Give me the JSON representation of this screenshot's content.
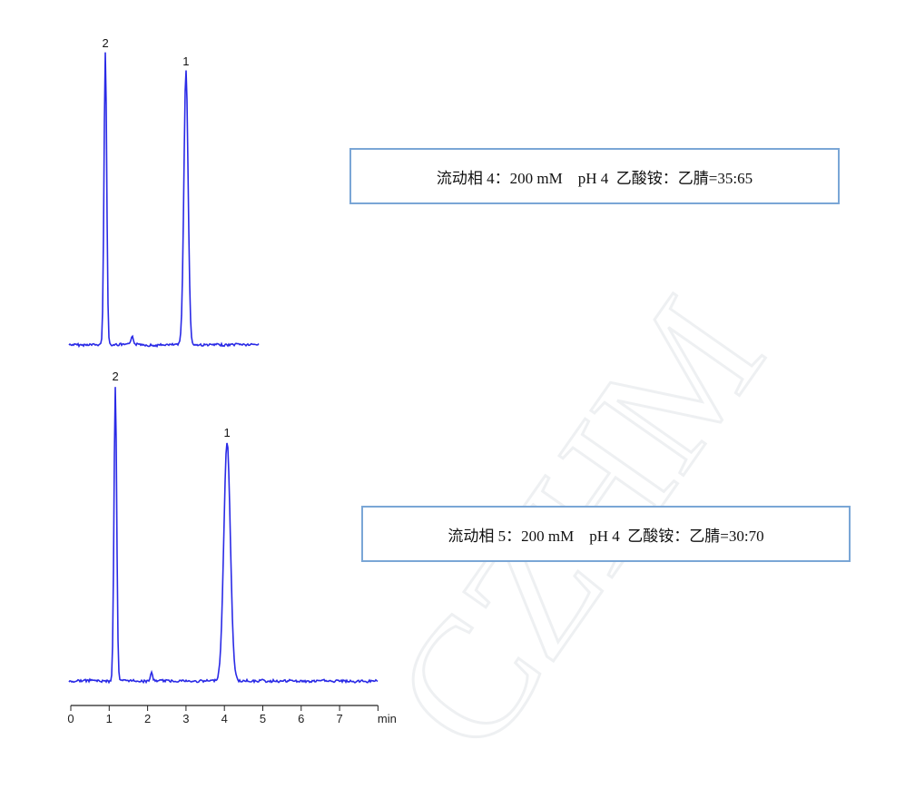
{
  "watermark": "CZHM",
  "line_color": "#2a2ae6",
  "box_border_color": "#7aa6d6",
  "chart_data": [
    {
      "type": "line",
      "title": "",
      "xlabel": "",
      "ylabel": "",
      "xlim": [
        0,
        4.9
      ],
      "grid": false,
      "peaks": [
        {
          "label": "2",
          "rt": 0.9,
          "height": 322,
          "sigma": 0.035
        },
        {
          "label": "1",
          "rt": 3.0,
          "height": 302,
          "sigma": 0.055
        },
        {
          "label": "",
          "rt": 1.6,
          "height": 10,
          "sigma": 0.03
        }
      ],
      "condition": "流动相 4：200 mM    pH 4  乙酸铵：乙腈=35:65"
    },
    {
      "type": "line",
      "title": "",
      "xlabel": "min",
      "ylabel": "",
      "xlim": [
        0,
        8
      ],
      "grid": false,
      "x_ticks": [
        "0",
        "1",
        "2",
        "3",
        "4",
        "5",
        "6",
        "7"
      ],
      "peaks": [
        {
          "label": "2",
          "rt": 1.16,
          "height": 325,
          "sigma": 0.035
        },
        {
          "label": "1",
          "rt": 4.07,
          "height": 263,
          "sigma": 0.085
        },
        {
          "label": "",
          "rt": 2.1,
          "height": 9,
          "sigma": 0.03
        }
      ],
      "condition": "流动相 5：200 mM    pH 4  乙酸铵：乙腈=30:70"
    }
  ]
}
